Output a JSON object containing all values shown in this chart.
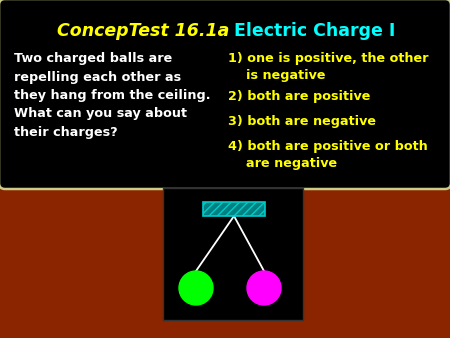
{
  "background_color": "#8B2500",
  "title_left": "ConcepTest 16.1a",
  "title_right": "Electric Charge I",
  "title_left_color": "#FFFF00",
  "title_right_color": "#00FFFF",
  "question_text": "Two charged balls are\nrepelling each other as\nthey hang from the ceiling.\nWhat can you say about\ntheir charges?",
  "question_color": "#FFFFFF",
  "answers": [
    "1) one is positive, the other\n    is negative",
    "2) both are positive",
    "3) both are negative",
    "4) both are positive or both\n    are negative"
  ],
  "answer_color": "#FFFF00",
  "box_bg": "#000000",
  "box_border": "#CCCC88",
  "diagram_bg": "#000000",
  "ball_left_color": "#00FF00",
  "ball_right_color": "#FF00FF",
  "string_color": "#FFFFFF",
  "ceiling_fill": "#008080",
  "ceiling_hatch": "////",
  "ceiling_edge": "#00CCCC"
}
